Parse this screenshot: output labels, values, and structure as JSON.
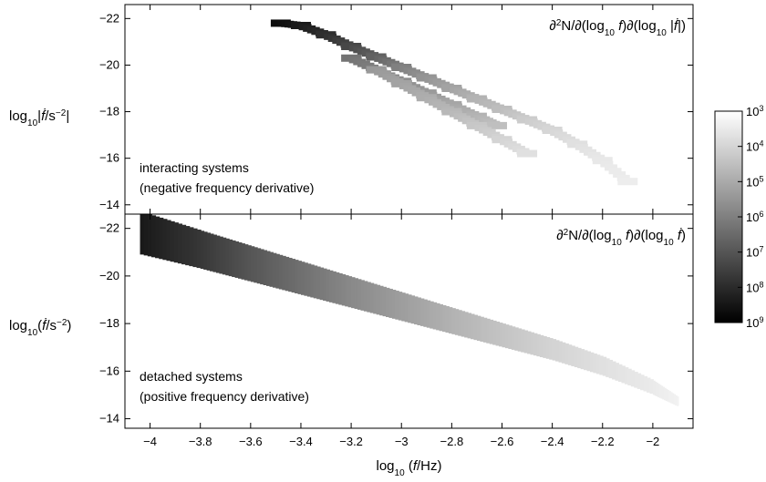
{
  "chart_data": [
    {
      "type": "heatmap",
      "ylabel_parts": [
        "log",
        "10",
        "|",
        "ḟ",
        "/s",
        "−2",
        "|"
      ],
      "annotation_lines": [
        "interacting systems",
        "(negative frequency derivative)"
      ],
      "density_label_parts": [
        "∂",
        "2",
        "N/∂(log",
        "10",
        " ",
        "f",
        ")∂(log",
        "10",
        " |",
        "ḟ",
        "|)"
      ],
      "xlim": [
        -4.1,
        -1.84
      ],
      "ylim": [
        -13.6,
        -22.6
      ],
      "yticks": [
        -22,
        -20,
        -18,
        -16,
        -14
      ],
      "ytick_labels": [
        "−22",
        "−20",
        "−18",
        "−16",
        "−14"
      ],
      "series": [
        {
          "x": [
            -3.48,
            -3.4,
            -3.3,
            -3.2,
            -3.1,
            -3.0,
            -2.9,
            -2.8,
            -2.7,
            -2.6,
            -2.5,
            -2.4,
            -2.3,
            -2.2,
            -2.1
          ],
          "y": [
            -21.8,
            -21.7,
            -21.3,
            -20.8,
            -20.35,
            -19.9,
            -19.45,
            -19.0,
            -18.55,
            -18.1,
            -17.65,
            -17.2,
            -16.6,
            -15.9,
            -15.0
          ],
          "level": [
            0.95,
            0.9,
            0.82,
            0.72,
            0.62,
            0.5,
            0.42,
            0.36,
            0.3,
            0.26,
            0.2,
            0.16,
            0.12,
            0.09,
            0.07
          ]
        },
        {
          "x": [
            -3.2,
            -3.1,
            -3.0,
            -2.9,
            -2.8,
            -2.7,
            -2.62
          ],
          "y": [
            -20.3,
            -19.8,
            -19.3,
            -18.8,
            -18.3,
            -17.8,
            -17.4
          ],
          "level": [
            0.55,
            0.5,
            0.45,
            0.4,
            0.35,
            0.3,
            0.25
          ]
        },
        {
          "x": [
            -3.1,
            -3.0,
            -2.9,
            -2.8,
            -2.7,
            -2.6,
            -2.5
          ],
          "y": [
            -19.8,
            -19.2,
            -18.6,
            -18.0,
            -17.4,
            -16.8,
            -16.2
          ],
          "level": [
            0.4,
            0.36,
            0.32,
            0.28,
            0.22,
            0.17,
            0.12
          ]
        }
      ]
    },
    {
      "type": "heatmap",
      "ylabel_parts": [
        "log",
        "10",
        "(",
        "ḟ",
        "/s",
        "−2",
        ")"
      ],
      "annotation_lines": [
        "detached systems",
        "(positive frequency derivative)"
      ],
      "density_label_parts": [
        "∂",
        "2",
        "N/∂(log",
        "10",
        " ",
        "f",
        ")∂(log",
        "10",
        " ",
        "ḟ",
        ")"
      ],
      "xlim": [
        -4.1,
        -1.84
      ],
      "ylim": [
        -13.6,
        -22.6
      ],
      "yticks": [
        -22,
        -20,
        -18,
        -16,
        -14
      ],
      "ytick_labels": [
        "−22",
        "−20",
        "−18",
        "−16",
        "−14"
      ],
      "xticks": [
        -4.0,
        -3.8,
        -3.6,
        -3.4,
        -3.2,
        -3.0,
        -2.8,
        -2.6,
        -2.4,
        -2.2,
        -2.0
      ],
      "xtick_labels": [
        "−4",
        "−3.8",
        "−3.6",
        "−3.4",
        "−3.2",
        "−3",
        "−2.8",
        "−2.6",
        "−2.4",
        "−2.2",
        "−2"
      ],
      "xlabel_parts": [
        "log",
        "10",
        " (",
        "f",
        "/Hz)"
      ],
      "band": {
        "x": [
          -4.04,
          -3.8,
          -3.6,
          -3.4,
          -3.2,
          -3.0,
          -2.8,
          -2.6,
          -2.4,
          -2.2,
          -2.0,
          -1.9
        ],
        "y_center": [
          -21.8,
          -21.1,
          -20.5,
          -19.9,
          -19.3,
          -18.7,
          -18.1,
          -17.5,
          -16.9,
          -16.2,
          -15.3,
          -14.7
        ],
        "half_width": [
          0.9,
          0.8,
          0.75,
          0.7,
          0.65,
          0.6,
          0.55,
          0.5,
          0.45,
          0.4,
          0.3,
          0.2
        ],
        "level": [
          0.9,
          0.78,
          0.66,
          0.56,
          0.46,
          0.38,
          0.3,
          0.23,
          0.17,
          0.12,
          0.08,
          0.05
        ]
      }
    }
  ],
  "colorbar": {
    "labels": [
      "10",
      "10",
      "10",
      "10",
      "10",
      "10",
      "10"
    ],
    "exponents": [
      "3",
      "4",
      "5",
      "6",
      "7",
      "8",
      "9"
    ],
    "gradient": [
      "#ffffff",
      "#000000"
    ]
  }
}
